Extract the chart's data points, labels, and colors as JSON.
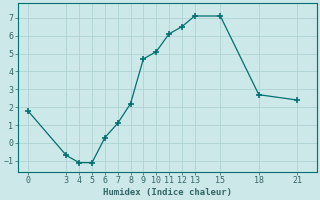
{
  "x": [
    0,
    3,
    4,
    5,
    6,
    7,
    8,
    9,
    10,
    11,
    12,
    13,
    15,
    18,
    21
  ],
  "y": [
    1.8,
    -0.7,
    -1.1,
    -1.1,
    0.3,
    1.1,
    2.2,
    4.7,
    5.1,
    6.1,
    6.5,
    7.1,
    7.1,
    2.7,
    2.4
  ],
  "line_color": "#007070",
  "marker": "+",
  "marker_size": 4,
  "marker_lw": 1.2,
  "xlabel": "Humidex (Indice chaleur)",
  "ylabel": "",
  "xlim": [
    -0.8,
    22.5
  ],
  "ylim": [
    -1.6,
    7.8
  ],
  "xticks": [
    0,
    3,
    4,
    5,
    6,
    7,
    8,
    9,
    10,
    11,
    12,
    13,
    15,
    18,
    21
  ],
  "yticks": [
    -1,
    0,
    1,
    2,
    3,
    4,
    5,
    6,
    7
  ],
  "bg_color": "#cce8e8",
  "grid_color": "#aacece",
  "font_color": "#336666",
  "label_fontsize": 6.5,
  "tick_fontsize": 6
}
